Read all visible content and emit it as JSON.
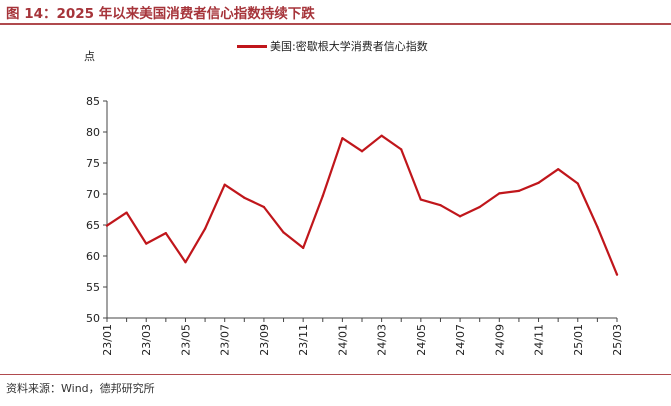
{
  "figure": {
    "title": "图 14：2025 年以来美国消费者信心指数持续下跌",
    "source": "资料来源：Wind，德邦研究所"
  },
  "colors": {
    "accent": "#a6343a",
    "series": "#c0161b",
    "rule": "#b04a4e"
  },
  "chart_data": {
    "type": "line",
    "title": "",
    "xlabel": "",
    "ylabel": "点",
    "ylim": [
      50,
      85
    ],
    "yticks": [
      50,
      55,
      60,
      65,
      70,
      75,
      80,
      85
    ],
    "grid": false,
    "legend_position": "top-center",
    "x": [
      "23/01",
      "23/02",
      "23/03",
      "23/04",
      "23/05",
      "23/06",
      "23/07",
      "23/08",
      "23/09",
      "23/10",
      "23/11",
      "23/12",
      "24/01",
      "24/02",
      "24/03",
      "24/04",
      "24/05",
      "24/06",
      "24/07",
      "24/08",
      "24/09",
      "24/10",
      "24/11",
      "24/12",
      "25/01",
      "25/02",
      "25/03"
    ],
    "xtick_labels": [
      "23/01",
      "23/03",
      "23/05",
      "23/07",
      "23/09",
      "23/11",
      "24/01",
      "24/03",
      "24/05",
      "24/07",
      "24/09",
      "24/11",
      "25/01",
      "25/03"
    ],
    "series": [
      {
        "name": "美国:密歇根大学消费者信心指数",
        "color": "#c0161b",
        "values": [
          64.9,
          67.0,
          62.0,
          63.7,
          59.0,
          64.4,
          71.5,
          69.4,
          67.9,
          63.8,
          61.3,
          69.7,
          79.0,
          76.9,
          79.4,
          77.2,
          69.1,
          68.2,
          66.4,
          67.9,
          70.1,
          70.5,
          71.8,
          74.0,
          71.7,
          64.7,
          57.0
        ]
      }
    ]
  }
}
